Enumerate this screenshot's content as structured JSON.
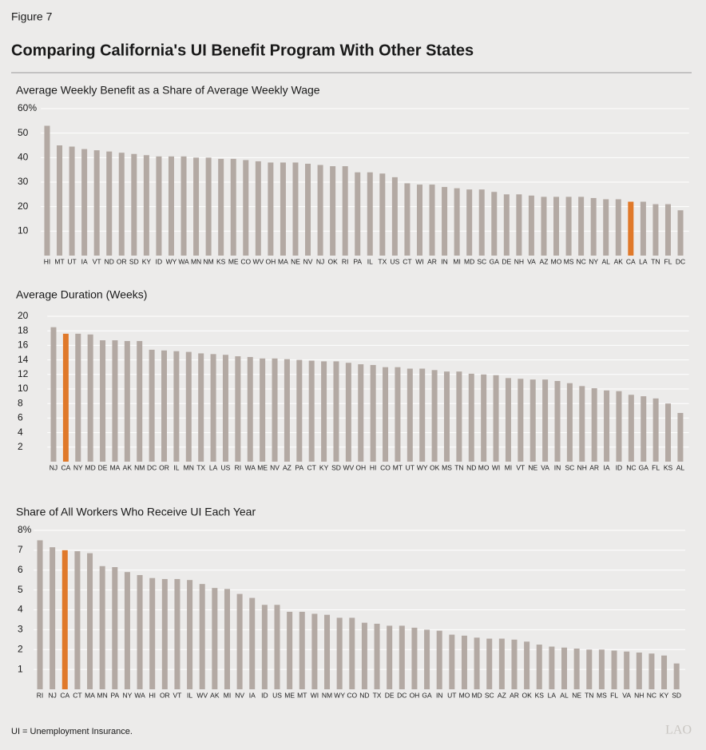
{
  "figure_label": "Figure 7",
  "title": "Comparing California's UI Benefit Program With Other States",
  "note": "UI = Unemployment Insurance.",
  "logo": "LAO",
  "chart_data": [
    {
      "type": "bar",
      "title": "Average Weekly Benefit as a Share of Average Weekly Wage",
      "categories": [
        "HI",
        "MT",
        "UT",
        "IA",
        "VT",
        "ND",
        "OR",
        "SD",
        "KY",
        "ID",
        "WY",
        "WA",
        "MN",
        "NM",
        "KS",
        "ME",
        "CO",
        "WV",
        "OH",
        "MA",
        "NE",
        "NV",
        "NJ",
        "OK",
        "RI",
        "PA",
        "IL",
        "TX",
        "US",
        "CT",
        "WI",
        "AR",
        "IN",
        "MI",
        "MD",
        "SC",
        "GA",
        "DE",
        "NH",
        "VA",
        "AZ",
        "MO",
        "MS",
        "NC",
        "NY",
        "AL",
        "AK",
        "CA",
        "LA",
        "TN",
        "FL",
        "DC"
      ],
      "values": [
        53,
        45,
        44.5,
        43.5,
        43,
        42.5,
        42,
        41.5,
        41,
        40.5,
        40.5,
        40.5,
        40,
        40,
        39.5,
        39.5,
        39,
        38.5,
        38,
        38,
        38,
        37.5,
        37,
        36.5,
        36.5,
        34,
        34,
        33.5,
        32,
        29.5,
        29,
        29,
        28,
        27.5,
        27,
        27,
        26,
        25,
        25,
        24.5,
        24,
        24,
        24,
        24,
        23.5,
        23,
        23,
        22,
        22,
        21,
        21,
        18.5
      ],
      "colors": [
        "#b3a9a3",
        "#b3a9a3",
        "#b3a9a3",
        "#b3a9a3",
        "#b3a9a3",
        "#b3a9a3",
        "#b3a9a3",
        "#b3a9a3",
        "#b3a9a3",
        "#b3a9a3",
        "#b3a9a3",
        "#b3a9a3",
        "#b3a9a3",
        "#b3a9a3",
        "#b3a9a3",
        "#b3a9a3",
        "#b3a9a3",
        "#b3a9a3",
        "#b3a9a3",
        "#b3a9a3",
        "#b3a9a3",
        "#b3a9a3",
        "#b3a9a3",
        "#b3a9a3",
        "#b3a9a3",
        "#b3a9a3",
        "#b3a9a3",
        "#b3a9a3",
        "#b3a9a3",
        "#b3a9a3",
        "#b3a9a3",
        "#b3a9a3",
        "#b3a9a3",
        "#b3a9a3",
        "#b3a9a3",
        "#b3a9a3",
        "#b3a9a3",
        "#b3a9a3",
        "#b3a9a3",
        "#b3a9a3",
        "#b3a9a3",
        "#b3a9a3",
        "#b3a9a3",
        "#b3a9a3",
        "#b3a9a3",
        "#b3a9a3",
        "#b3a9a3",
        "#e0792a",
        "#b3a9a3",
        "#b3a9a3",
        "#b3a9a3",
        "#b3a9a3"
      ],
      "ylim": [
        0,
        60
      ],
      "yticks": [
        10,
        20,
        30,
        40,
        {
          "value": 50,
          "label": "50"
        },
        {
          "value": 60,
          "label": "60%"
        }
      ],
      "grid": true
    },
    {
      "type": "bar",
      "title": "Average Duration (Weeks)",
      "categories": [
        "NJ",
        "CA",
        "NY",
        "MD",
        "DE",
        "MA",
        "AK",
        "NM",
        "DC",
        "OR",
        "IL",
        "MN",
        "TX",
        "LA",
        "US",
        "RI",
        "WA",
        "ME",
        "NV",
        "AZ",
        "PA",
        "CT",
        "KY",
        "SD",
        "WV",
        "OH",
        "HI",
        "CO",
        "MT",
        "UT",
        "WY",
        "OK",
        "MS",
        "TN",
        "ND",
        "MO",
        "WI",
        "MI",
        "VT",
        "NE",
        "VA",
        "IN",
        "SC",
        "NH",
        "AR",
        "IA",
        "ID",
        "NC",
        "GA",
        "FL",
        "KS",
        "AL"
      ],
      "values": [
        18.5,
        17.6,
        17.6,
        17.5,
        16.7,
        16.7,
        16.6,
        16.6,
        15.4,
        15.3,
        15.2,
        15.1,
        14.9,
        14.8,
        14.7,
        14.5,
        14.4,
        14.2,
        14.2,
        14.1,
        14.0,
        13.9,
        13.8,
        13.8,
        13.6,
        13.4,
        13.3,
        13.0,
        13.0,
        12.8,
        12.8,
        12.6,
        12.4,
        12.4,
        12.1,
        12.0,
        11.9,
        11.5,
        11.4,
        11.3,
        11.3,
        11.1,
        10.8,
        10.4,
        10.1,
        9.8,
        9.7,
        9.2,
        9.0,
        8.7,
        8.0,
        6.7
      ],
      "colors": [
        "#b3a9a3",
        "#e0792a",
        "#b3a9a3",
        "#b3a9a3",
        "#b3a9a3",
        "#b3a9a3",
        "#b3a9a3",
        "#b3a9a3",
        "#b3a9a3",
        "#b3a9a3",
        "#b3a9a3",
        "#b3a9a3",
        "#b3a9a3",
        "#b3a9a3",
        "#b3a9a3",
        "#b3a9a3",
        "#b3a9a3",
        "#b3a9a3",
        "#b3a9a3",
        "#b3a9a3",
        "#b3a9a3",
        "#b3a9a3",
        "#b3a9a3",
        "#b3a9a3",
        "#b3a9a3",
        "#b3a9a3",
        "#b3a9a3",
        "#b3a9a3",
        "#b3a9a3",
        "#b3a9a3",
        "#b3a9a3",
        "#b3a9a3",
        "#b3a9a3",
        "#b3a9a3",
        "#b3a9a3",
        "#b3a9a3",
        "#b3a9a3",
        "#b3a9a3",
        "#b3a9a3",
        "#b3a9a3",
        "#b3a9a3",
        "#b3a9a3",
        "#b3a9a3",
        "#b3a9a3",
        "#b3a9a3",
        "#b3a9a3",
        "#b3a9a3",
        "#b3a9a3",
        "#b3a9a3",
        "#b3a9a3",
        "#b3a9a3",
        "#b3a9a3"
      ],
      "ylim": [
        0,
        20
      ],
      "yticks": [
        2,
        4,
        6,
        8,
        10,
        12,
        14,
        16,
        18,
        20
      ],
      "grid": true
    },
    {
      "type": "bar",
      "title": "Share of All Workers Who Receive UI Each Year",
      "categories": [
        "RI",
        "NJ",
        "CA",
        "CT",
        "MA",
        "MN",
        "PA",
        "NY",
        "WA",
        "HI",
        "OR",
        "VT",
        "IL",
        "WV",
        "AK",
        "MI",
        "NV",
        "IA",
        "ID",
        "US",
        "ME",
        "MT",
        "WI",
        "NM",
        "WY",
        "CO",
        "ND",
        "TX",
        "DE",
        "DC",
        "OH",
        "GA",
        "IN",
        "UT",
        "MO",
        "MD",
        "SC",
        "AZ",
        "AR",
        "OK",
        "KS",
        "LA",
        "AL",
        "NE",
        "TN",
        "MS",
        "FL",
        "VA",
        "NH",
        "NC",
        "KY",
        "SD"
      ],
      "values": [
        7.5,
        7.15,
        7.0,
        6.95,
        6.85,
        6.2,
        6.15,
        5.9,
        5.75,
        5.6,
        5.55,
        5.55,
        5.5,
        5.3,
        5.1,
        5.05,
        4.8,
        4.6,
        4.25,
        4.25,
        3.9,
        3.9,
        3.8,
        3.75,
        3.6,
        3.6,
        3.35,
        3.3,
        3.2,
        3.2,
        3.1,
        3.0,
        2.95,
        2.75,
        2.7,
        2.6,
        2.55,
        2.55,
        2.5,
        2.4,
        2.25,
        2.15,
        2.1,
        2.05,
        2.0,
        2.0,
        1.95,
        1.9,
        1.85,
        1.8,
        1.7,
        1.3
      ],
      "colors": [
        "#b3a9a3",
        "#b3a9a3",
        "#e0792a",
        "#b3a9a3",
        "#b3a9a3",
        "#b3a9a3",
        "#b3a9a3",
        "#b3a9a3",
        "#b3a9a3",
        "#b3a9a3",
        "#b3a9a3",
        "#b3a9a3",
        "#b3a9a3",
        "#b3a9a3",
        "#b3a9a3",
        "#b3a9a3",
        "#b3a9a3",
        "#b3a9a3",
        "#b3a9a3",
        "#b3a9a3",
        "#b3a9a3",
        "#b3a9a3",
        "#b3a9a3",
        "#b3a9a3",
        "#b3a9a3",
        "#b3a9a3",
        "#b3a9a3",
        "#b3a9a3",
        "#b3a9a3",
        "#b3a9a3",
        "#b3a9a3",
        "#b3a9a3",
        "#b3a9a3",
        "#b3a9a3",
        "#b3a9a3",
        "#b3a9a3",
        "#b3a9a3",
        "#b3a9a3",
        "#b3a9a3",
        "#b3a9a3",
        "#b3a9a3",
        "#b3a9a3",
        "#b3a9a3",
        "#b3a9a3",
        "#b3a9a3",
        "#b3a9a3",
        "#b3a9a3",
        "#b3a9a3",
        "#b3a9a3",
        "#b3a9a3",
        "#b3a9a3",
        "#b3a9a3"
      ],
      "ylim": [
        0,
        8
      ],
      "yticks": [
        1,
        2,
        3,
        4,
        5,
        6,
        7,
        {
          "value": 8,
          "label": "8%"
        }
      ],
      "grid": true
    }
  ]
}
